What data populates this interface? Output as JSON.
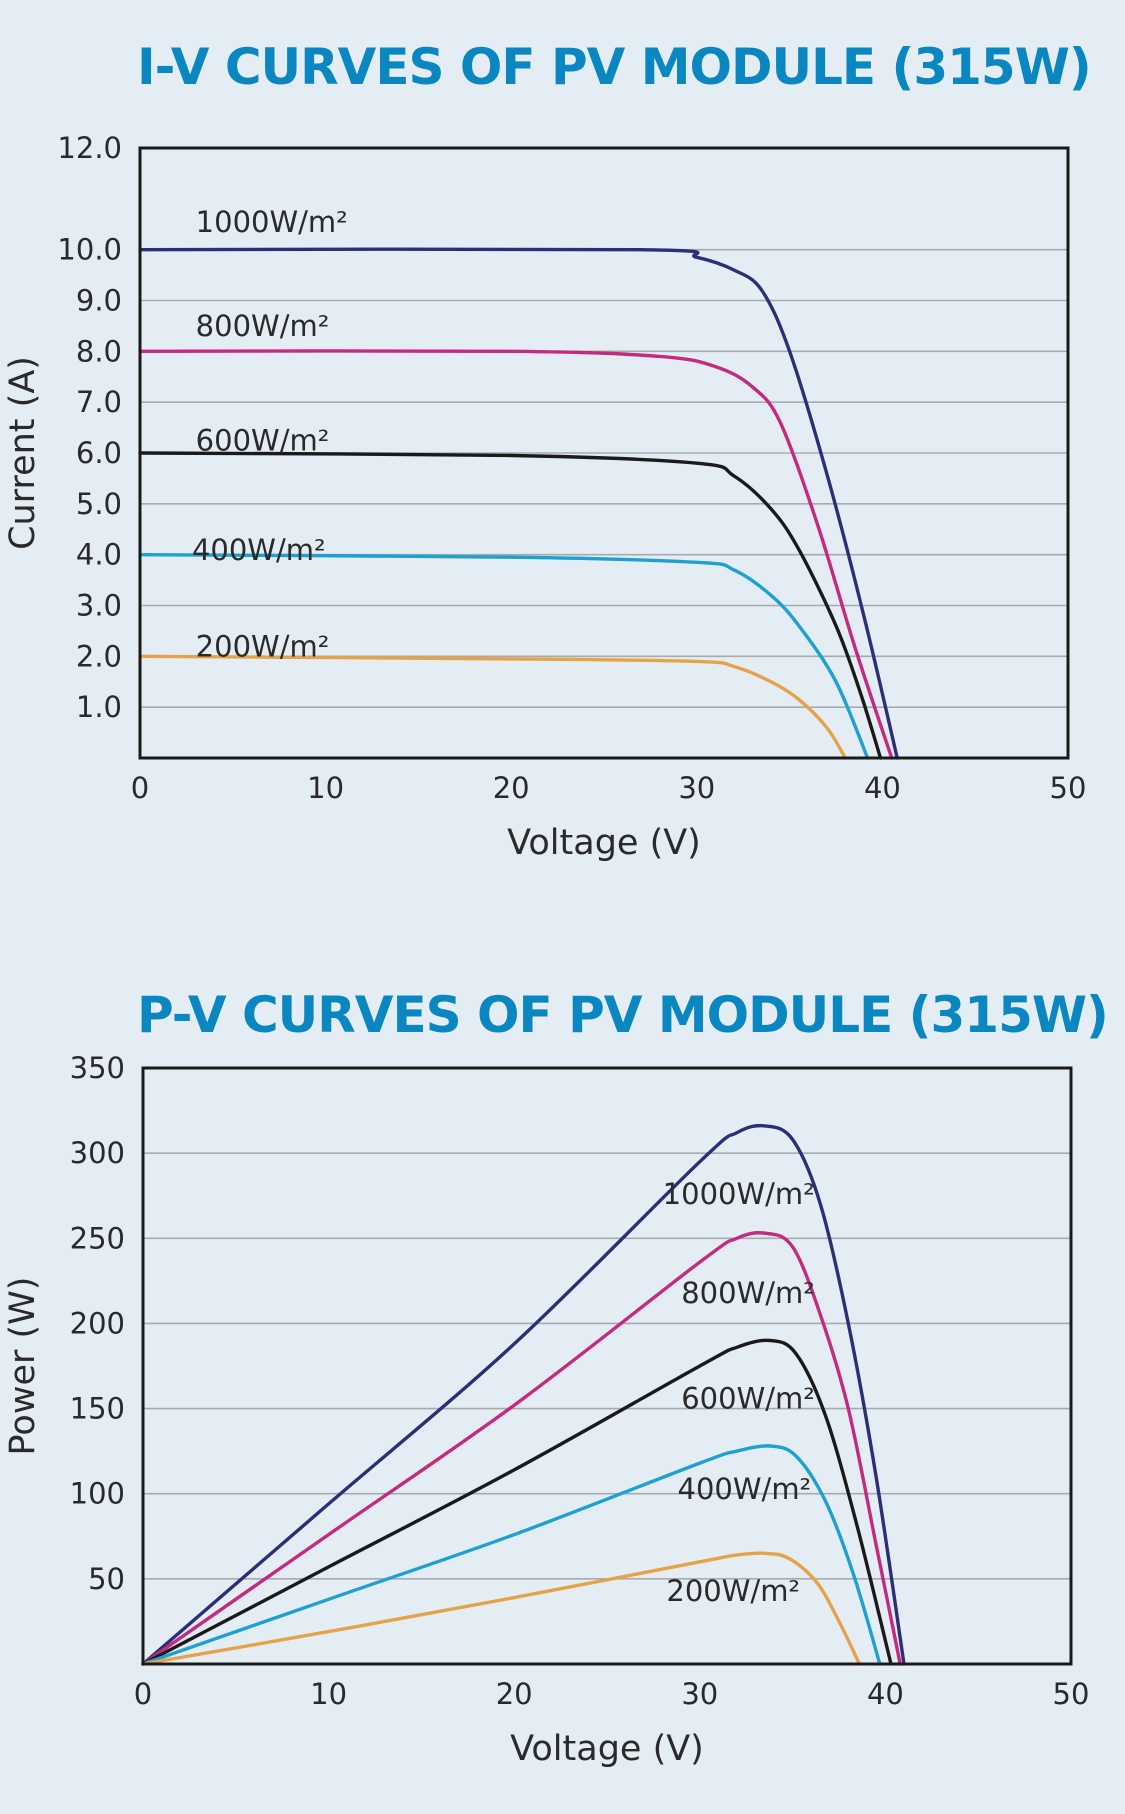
{
  "chart_data": [
    {
      "id": "iv",
      "type": "line",
      "title": "I-V CURVES OF PV MODULE (315W)",
      "xlabel": "Voltage (V)",
      "ylabel": "Current (A)",
      "xlim": [
        0,
        50
      ],
      "ylim": [
        0,
        12
      ],
      "x_ticks": [
        "0",
        "10",
        "20",
        "30",
        "40",
        "50"
      ],
      "y_ticks": [
        "1.0",
        "2.0",
        "3.0",
        "4.0",
        "5.0",
        "6.0",
        "7.0",
        "8.0",
        "9.0",
        "10.0",
        "12.0"
      ],
      "grid": true,
      "series": [
        {
          "name": "1000W/m²",
          "color": "#2b2f78",
          "label_at": [
            3,
            10.35
          ],
          "points": [
            [
              0,
              10
            ],
            [
              27,
              10
            ],
            [
              30,
              9.85
            ],
            [
              32,
              9.6
            ],
            [
              33.5,
              9.2
            ],
            [
              35,
              8.0
            ],
            [
              37,
              5.6
            ],
            [
              39,
              2.8
            ],
            [
              40.8,
              0
            ]
          ]
        },
        {
          "name": "800W/m²",
          "color": "#c42a7d",
          "label_at": [
            3,
            8.3
          ],
          "points": [
            [
              0,
              8
            ],
            [
              20,
              8
            ],
            [
              28,
              7.9
            ],
            [
              31,
              7.7
            ],
            [
              33,
              7.3
            ],
            [
              34.5,
              6.6
            ],
            [
              36.5,
              4.6
            ],
            [
              38.5,
              2.2
            ],
            [
              40.5,
              0
            ]
          ]
        },
        {
          "name": "600W/m²",
          "color": "#1a1a1a",
          "label_at": [
            3,
            6.05
          ],
          "points": [
            [
              0,
              6
            ],
            [
              20,
              5.95
            ],
            [
              30,
              5.8
            ],
            [
              32,
              5.55
            ],
            [
              34,
              4.9
            ],
            [
              35.5,
              4.1
            ],
            [
              37.5,
              2.6
            ],
            [
              38.8,
              1.3
            ],
            [
              39.9,
              0
            ]
          ]
        },
        {
          "name": "400W/m²",
          "color": "#1ea0d2",
          "label_at": [
            2.8,
            3.9
          ],
          "points": [
            [
              0,
              4
            ],
            [
              20,
              3.95
            ],
            [
              30,
              3.85
            ],
            [
              32,
              3.7
            ],
            [
              34,
              3.2
            ],
            [
              35.5,
              2.6
            ],
            [
              37.5,
              1.5
            ],
            [
              39.2,
              0
            ]
          ]
        },
        {
          "name": "200W/m²",
          "color": "#e6a24a",
          "label_at": [
            3,
            2.0
          ],
          "points": [
            [
              0,
              2
            ],
            [
              20,
              1.95
            ],
            [
              30,
              1.9
            ],
            [
              32,
              1.8
            ],
            [
              34,
              1.5
            ],
            [
              35.5,
              1.15
            ],
            [
              37,
              0.6
            ],
            [
              38,
              0
            ]
          ]
        }
      ]
    },
    {
      "id": "pv",
      "type": "line",
      "title": "P-V CURVES OF PV MODULE (315W)",
      "xlabel": "Voltage (V)",
      "ylabel": "Power (W)",
      "xlim": [
        0,
        50
      ],
      "ylim": [
        0,
        350
      ],
      "x_ticks": [
        "0",
        "10",
        "20",
        "30",
        "40",
        "50"
      ],
      "y_ticks": [
        "50",
        "100",
        "150",
        "200",
        "250",
        "300",
        "350"
      ],
      "grid": true,
      "series": [
        {
          "name": "1000W/m²",
          "color": "#2b2f78",
          "label_at": [
            28,
            270
          ],
          "points": [
            [
              0,
              0
            ],
            [
              10,
              94
            ],
            [
              20,
              188
            ],
            [
              30,
              295
            ],
            [
              32,
              312
            ],
            [
              33.5,
              316
            ],
            [
              35,
              308
            ],
            [
              36.5,
              270
            ],
            [
              38,
              200
            ],
            [
              39.5,
              110
            ],
            [
              41,
              0
            ]
          ]
        },
        {
          "name": "800W/m²",
          "color": "#c42a7d",
          "label_at": [
            29,
            212
          ],
          "points": [
            [
              0,
              0
            ],
            [
              10,
              76
            ],
            [
              20,
              152
            ],
            [
              30,
              236
            ],
            [
              32,
              250
            ],
            [
              33.5,
              253
            ],
            [
              35,
              245
            ],
            [
              36.5,
              205
            ],
            [
              38,
              150
            ],
            [
              39.5,
              70
            ],
            [
              40.8,
              0
            ]
          ]
        },
        {
          "name": "600W/m²",
          "color": "#1a1a1a",
          "label_at": [
            29,
            150
          ],
          "points": [
            [
              0,
              0
            ],
            [
              10,
              57
            ],
            [
              20,
              114
            ],
            [
              30,
              175
            ],
            [
              32,
              186
            ],
            [
              33.8,
              190
            ],
            [
              35.2,
              182
            ],
            [
              36.8,
              145
            ],
            [
              38.5,
              80
            ],
            [
              40.3,
              0
            ]
          ]
        },
        {
          "name": "400W/m²",
          "color": "#1ea0d2",
          "label_at": [
            28.8,
            97
          ],
          "points": [
            [
              0,
              0
            ],
            [
              10,
              38
            ],
            [
              20,
              76
            ],
            [
              30,
              118
            ],
            [
              32,
              125
            ],
            [
              33.8,
              128
            ],
            [
              35.2,
              122
            ],
            [
              36.8,
              95
            ],
            [
              38.3,
              52
            ],
            [
              39.7,
              0
            ]
          ]
        },
        {
          "name": "200W/m²",
          "color": "#e6a24a",
          "label_at": [
            28.2,
            37
          ],
          "points": [
            [
              0,
              0
            ],
            [
              10,
              19
            ],
            [
              20,
              39
            ],
            [
              30,
              60
            ],
            [
              32,
              64
            ],
            [
              33.5,
              65
            ],
            [
              34.8,
              62
            ],
            [
              36.3,
              48
            ],
            [
              37.5,
              25
            ],
            [
              38.6,
              0
            ]
          ]
        }
      ]
    }
  ]
}
